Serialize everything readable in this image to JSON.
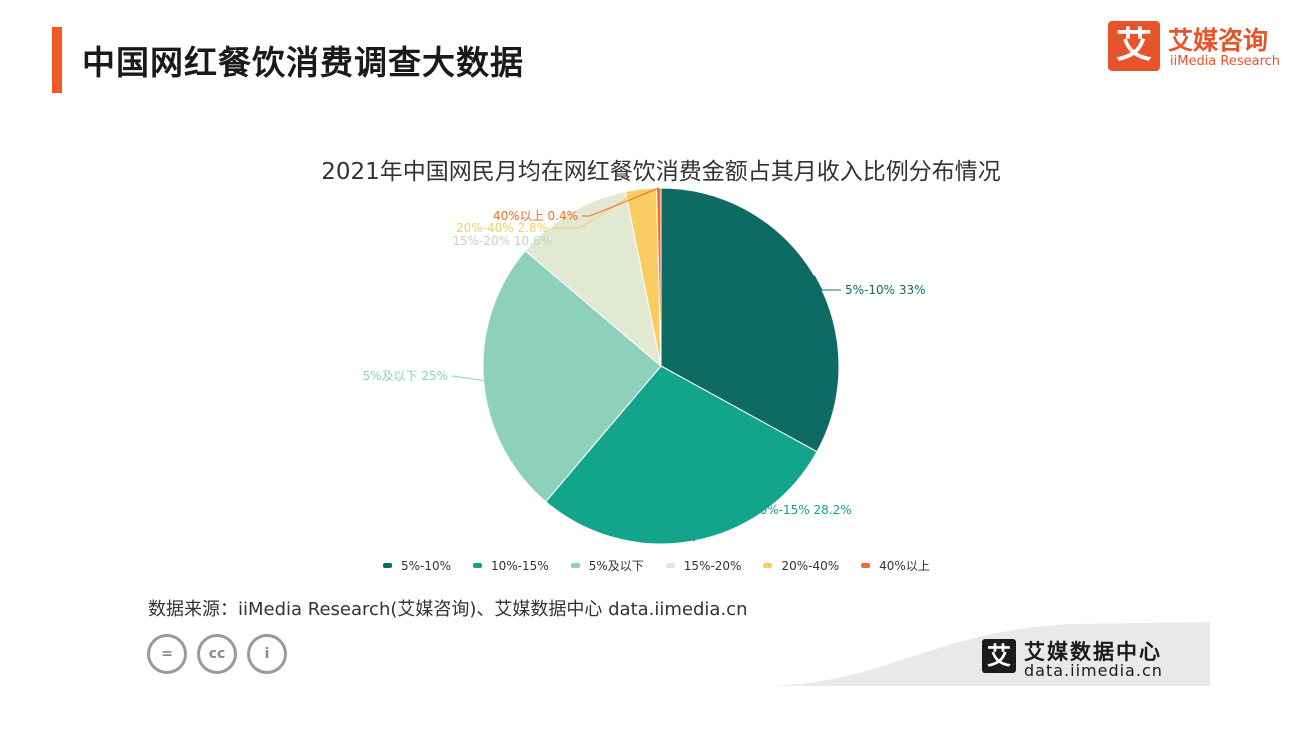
{
  "header": {
    "title": "中国网红餐饮消费调查大数据",
    "accent_color": "#f15a24"
  },
  "brand": {
    "logo_char": "艾",
    "name_cn": "艾媒咨询",
    "name_en": "iiMedia Research",
    "color": "#e8542a"
  },
  "chart_data": {
    "type": "pie",
    "title": "2021年中国网民月均在网红餐饮消费金额占其月收入比例分布情况",
    "legend_position": "bottom",
    "slices": [
      {
        "label": "5%-10%",
        "value": 33,
        "value_text": "33%",
        "color": "#0e6b64"
      },
      {
        "label": "10%-15%",
        "value": 28.2,
        "value_text": "28.2%",
        "color": "#13a48c"
      },
      {
        "label": "5%及以下",
        "value": 25,
        "value_text": "25%",
        "color": "#8dd1bb"
      },
      {
        "label": "15%-20%",
        "value": 10.6,
        "value_text": "10.6%",
        "color": "#e1e9d2"
      },
      {
        "label": "20%-40%",
        "value": 2.8,
        "value_text": "2.8%",
        "color": "#f9cd62"
      },
      {
        "label": "40%以上",
        "value": 0.4,
        "value_text": "0.4%",
        "color": "#f36c2c"
      }
    ]
  },
  "source": {
    "text": "数据来源：iiMedia Research(艾媒咨询)、艾媒数据中心 data.iimedia.cn"
  },
  "license_icons": [
    {
      "icon": "equals-icon",
      "text": "="
    },
    {
      "icon": "cc-icon",
      "text": "cc"
    },
    {
      "icon": "person-icon",
      "text": "i"
    }
  ],
  "footer": {
    "logo_char": "艾",
    "name_cn": "艾媒数据中心",
    "url": "data.iimedia.cn"
  }
}
